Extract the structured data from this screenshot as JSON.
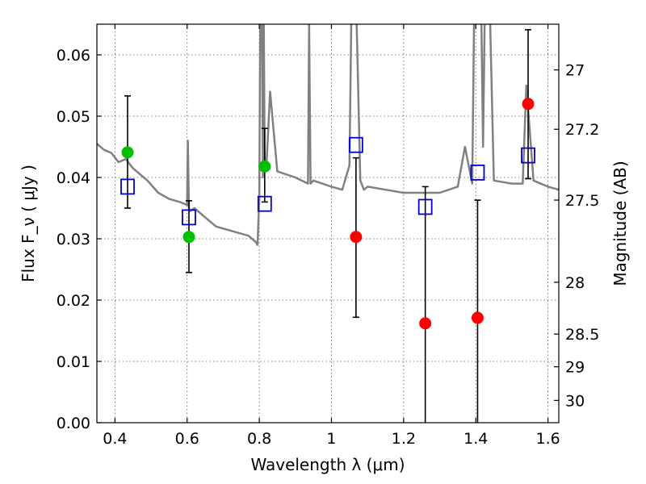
{
  "chart_data": {
    "type": "scatter",
    "xlabel": "Wavelength  λ (μm)",
    "ylabel": "Flux  F_ν  ( μJy )",
    "ylabel_right": "Magnitude (AB)",
    "xlim": [
      0.35,
      1.63
    ],
    "ylim": [
      0.0,
      0.065
    ],
    "grid": true,
    "x_ticks": [
      0.4,
      0.6,
      0.8,
      1.0,
      1.2,
      1.4,
      1.6
    ],
    "x_tick_labels": [
      "0.4",
      "0.6",
      "0.8",
      "1",
      "1.2",
      "1.4",
      "1.6"
    ],
    "y_ticks": [
      0.0,
      0.01,
      0.02,
      0.03,
      0.04,
      0.05,
      0.06
    ],
    "y_tick_labels": [
      "0.00",
      "0.01",
      "0.02",
      "0.03",
      "0.04",
      "0.05",
      "0.06"
    ],
    "right_ticks": [
      {
        "label": "27",
        "mag": 27.0
      },
      {
        "label": "27.2",
        "mag": 27.2
      },
      {
        "label": "27.5",
        "mag": 27.5
      },
      {
        "label": "28",
        "mag": 28.0
      },
      {
        "label": "28.5",
        "mag": 28.5
      },
      {
        "label": "29",
        "mag": 29.0
      },
      {
        "label": "30",
        "mag": 30.0
      }
    ],
    "series": [
      {
        "kind": "model_spectrum",
        "color": "#808080",
        "x": [
          0.35,
          0.37,
          0.39,
          0.41,
          0.43,
          0.45,
          0.47,
          0.49,
          0.52,
          0.55,
          0.58,
          0.6,
          0.602,
          0.605,
          0.607,
          0.62,
          0.65,
          0.68,
          0.71,
          0.74,
          0.77,
          0.79,
          0.795,
          0.8,
          0.805,
          0.81,
          0.812,
          0.815,
          0.82,
          0.83,
          0.85,
          0.9,
          0.935,
          0.938,
          0.942,
          0.95,
          1.0,
          1.03,
          1.05,
          1.06,
          1.08,
          1.09,
          1.1,
          1.15,
          1.2,
          1.22,
          1.25,
          1.28,
          1.3,
          1.35,
          1.37,
          1.39,
          1.4,
          1.41,
          1.42,
          1.43,
          1.45,
          1.5,
          1.53,
          1.54,
          1.56,
          1.6,
          1.63
        ],
        "y": [
          0.0455,
          0.0445,
          0.044,
          0.0425,
          0.043,
          0.0415,
          0.0405,
          0.0395,
          0.0375,
          0.0365,
          0.036,
          0.0355,
          0.046,
          0.035,
          0.0345,
          0.035,
          0.0335,
          0.032,
          0.0315,
          0.031,
          0.0305,
          0.0295,
          0.029,
          0.0365,
          0.09,
          0.04,
          0.07,
          0.041,
          0.042,
          0.054,
          0.041,
          0.04,
          0.039,
          0.065,
          0.039,
          0.0395,
          0.0385,
          0.038,
          0.042,
          0.09,
          0.0395,
          0.038,
          0.0385,
          0.038,
          0.0375,
          0.0375,
          0.0375,
          0.0375,
          0.0375,
          0.0385,
          0.045,
          0.039,
          0.09,
          0.09,
          0.045,
          0.09,
          0.0395,
          0.039,
          0.039,
          0.055,
          0.0395,
          0.0385,
          0.038
        ]
      },
      {
        "kind": "model_photometry",
        "marker": "open_square",
        "color": "#0000cc",
        "x": [
          0.435,
          0.605,
          0.815,
          1.068,
          1.26,
          1.405,
          1.545
        ],
        "y": [
          0.0385,
          0.0335,
          0.0357,
          0.0453,
          0.0352,
          0.0408,
          0.0436
        ]
      },
      {
        "kind": "observed_filled",
        "marker": "filled_circle",
        "color": "#00c000",
        "x": [
          0.435,
          0.605,
          0.815
        ],
        "y": [
          0.0441,
          0.0303,
          0.0418
        ],
        "yerr_low": [
          0.035,
          0.0245,
          0.036
        ],
        "yerr_high": [
          0.0533,
          0.0362,
          0.048
        ]
      },
      {
        "kind": "observed_upper",
        "marker": "filled_circle",
        "color": "#ff0000",
        "x": [
          1.068,
          1.26,
          1.405,
          1.545
        ],
        "y": [
          0.0303,
          0.0162,
          0.0171,
          0.052
        ],
        "yerr_low": [
          0.0172,
          0.0,
          0.0,
          0.0398
        ],
        "yerr_high": [
          0.0432,
          0.0385,
          0.0363,
          0.0641
        ]
      }
    ]
  }
}
